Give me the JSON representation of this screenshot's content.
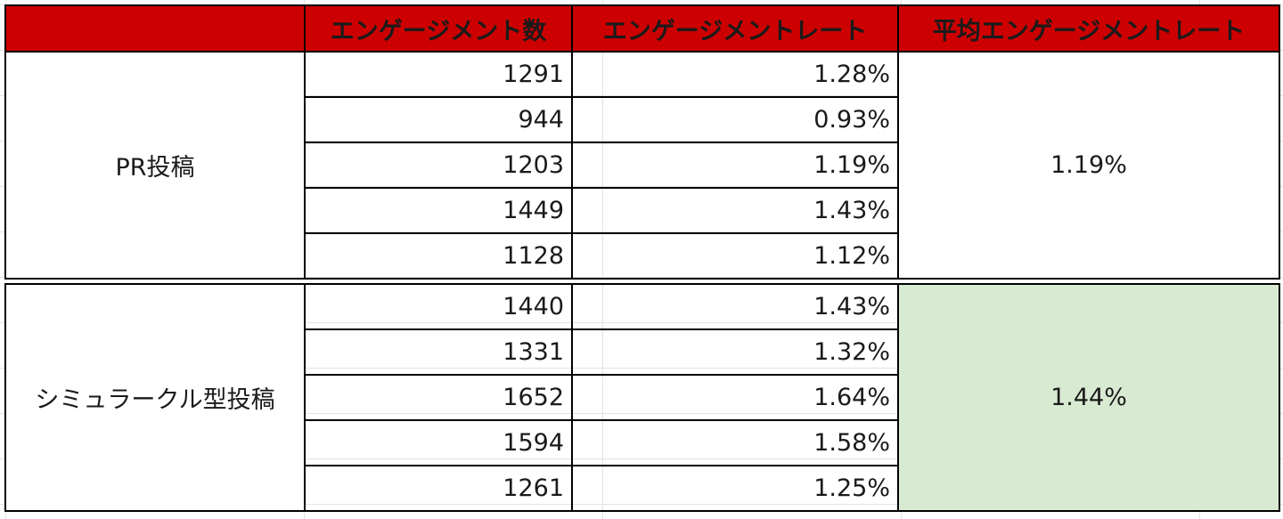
{
  "headers": {
    "col0": "",
    "col1": "エンゲージメント数",
    "col2": "エンゲージメントレート",
    "col3": "平均エンゲージメントレート"
  },
  "groups": [
    {
      "label": "PR投稿",
      "average": "1.19%",
      "highlight": false,
      "rows": [
        {
          "count": "1291",
          "rate": "1.28%"
        },
        {
          "count": "944",
          "rate": "0.93%"
        },
        {
          "count": "1203",
          "rate": "1.19%"
        },
        {
          "count": "1449",
          "rate": "1.43%"
        },
        {
          "count": "1128",
          "rate": "1.12%"
        }
      ]
    },
    {
      "label": "シミュラークル型投稿",
      "average": "1.44%",
      "highlight": true,
      "rows": [
        {
          "count": "1440",
          "rate": "1.43%"
        },
        {
          "count": "1331",
          "rate": "1.32%"
        },
        {
          "count": "1652",
          "rate": "1.64%"
        },
        {
          "count": "1594",
          "rate": "1.58%"
        },
        {
          "count": "1261",
          "rate": "1.25%"
        }
      ]
    }
  ],
  "colors": {
    "header_bg": "#cc0000",
    "header_text": "#ffe9a6",
    "highlight_bg": "#d9ead3"
  }
}
